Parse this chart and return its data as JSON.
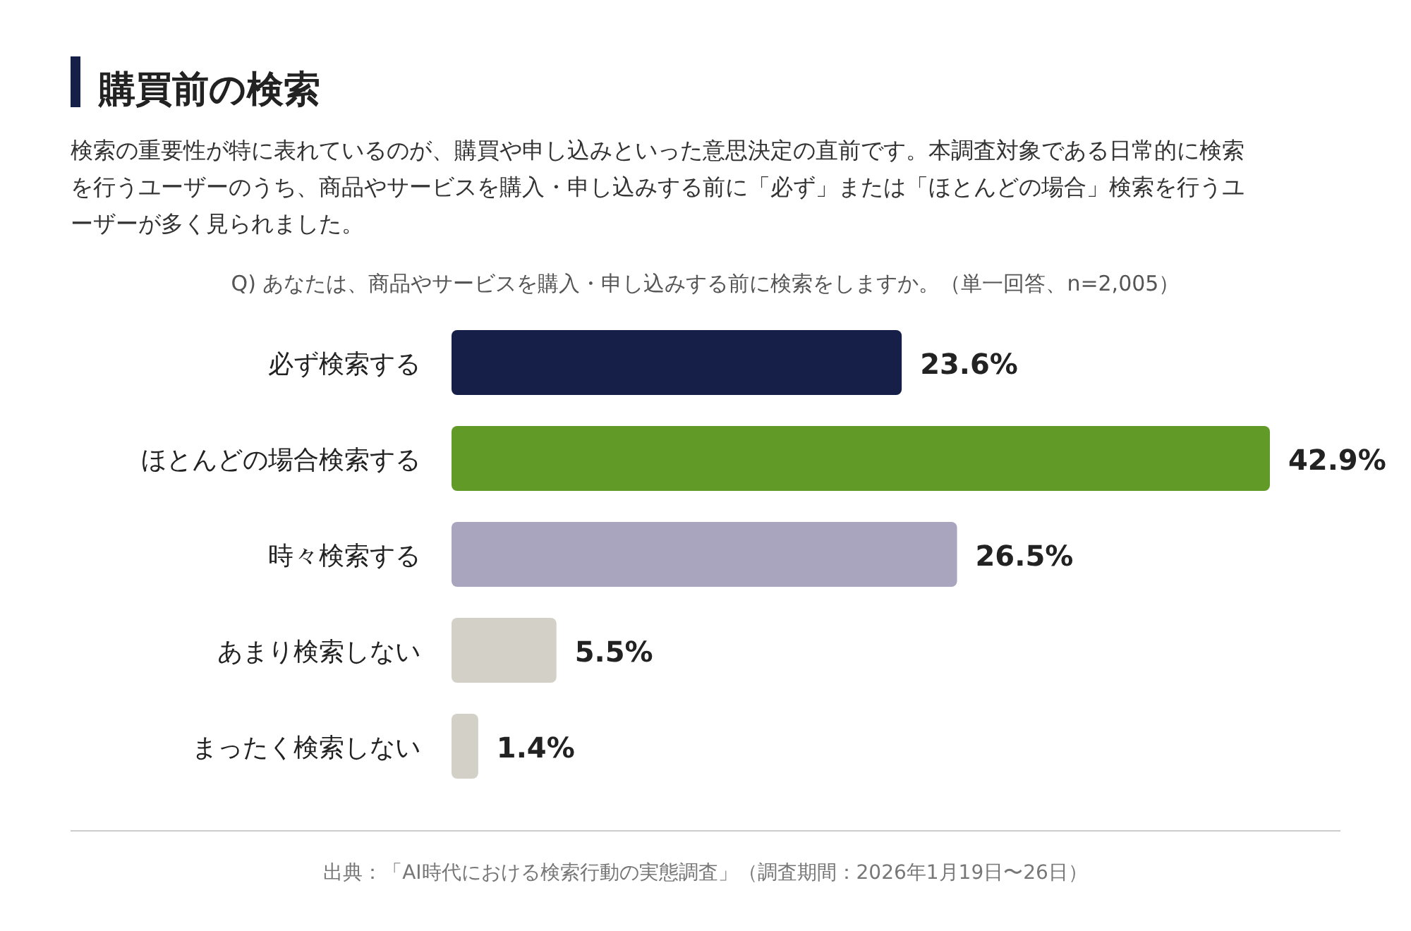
{
  "chart_data": {
    "type": "bar",
    "orientation": "horizontal",
    "title": "購買前の検索",
    "subtitle": "検索の重要性が特に表れているのが、購買や申し込みといった意思決定の直前です。本調査対象である日常的に検索を行うユーザーのうち、商品やサービスを購入・申し込みする前に「必ず」または「ほとんどの場合」検索を行うユーザーが多く見られました。",
    "annotations": [
      "Q) あなたは、商品やサービスを購入・申し込みする前に検索をしますか。（単一回答、n=2,005）",
      "出典：「AI時代における検索行動の実態調査」（調査期間：2026年1月19日〜26日）"
    ],
    "categories": [
      "必ず検索する",
      "ほとんどの場合検索する",
      "時々検索する",
      "あまり検索しない",
      "まったく検索しない"
    ],
    "values": [
      23.6,
      42.9,
      26.5,
      5.5,
      1.4
    ],
    "colors": [
      "#161f48",
      "#629a27",
      "#a9a5bf",
      "#d3d0c8",
      "#d3d0c8"
    ],
    "value_labels": [
      "23.6%",
      "42.9%",
      "26.5%",
      "5.5%",
      "1.4%"
    ]
  }
}
